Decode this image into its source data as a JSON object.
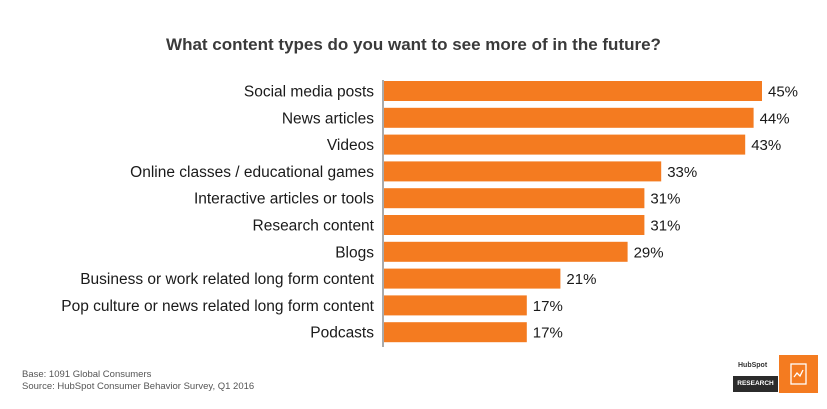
{
  "chart_data": {
    "type": "bar",
    "orientation": "horizontal",
    "title": "What content types do you want to see more of in the future?",
    "categories": [
      "Social media posts",
      "News articles",
      "Videos",
      "Online classes / educational games",
      "Interactive articles or tools",
      "Research content",
      "Blogs",
      "Business or work related long form content",
      "Pop culture or news related long form content",
      "Podcasts"
    ],
    "values": [
      45,
      44,
      43,
      33,
      31,
      31,
      29,
      21,
      17,
      17
    ],
    "value_labels": [
      "45%",
      "44%",
      "43%",
      "33%",
      "31%",
      "31%",
      "29%",
      "21%",
      "17%",
      "17%"
    ],
    "xlim": [
      0,
      45
    ],
    "grid": false,
    "legend": "none",
    "bar_color": "#f47b20"
  },
  "footnote": {
    "base": "Base: 1091 Global Consumers",
    "source": "Source: HubSpot Consumer Behavior Survey, Q1 2016"
  },
  "logo": {
    "brand": "HubSpot",
    "label": "RESEARCH",
    "accent_color": "#f47b20",
    "icon": "research-doc-icon"
  }
}
